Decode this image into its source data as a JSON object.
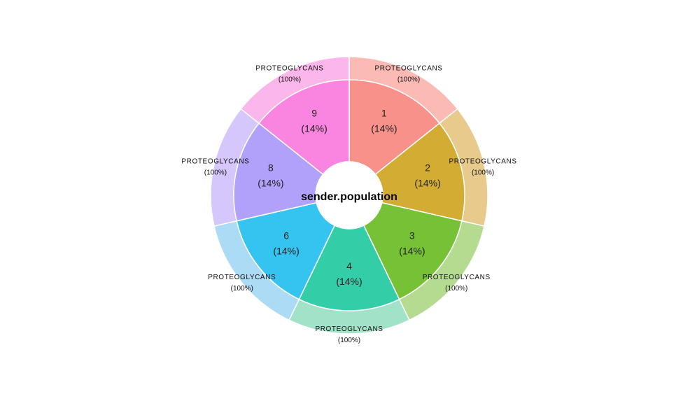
{
  "chart_data": {
    "type": "pie",
    "title": "sender.population",
    "inner_ring": {
      "categories": [
        "1",
        "2",
        "3",
        "4",
        "6",
        "8",
        "9"
      ],
      "values": [
        14,
        14,
        14,
        14,
        14,
        14,
        14
      ],
      "labels": [
        "(14%)",
        "(14%)",
        "(14%)",
        "(14%)",
        "(14%)",
        "(14%)",
        "(14%)"
      ],
      "colors": [
        "#F8918A",
        "#D3AC33",
        "#76C135",
        "#33CDA8",
        "#35C4EF",
        "#B1A1FA",
        "#FA85E1"
      ]
    },
    "outer_ring": {
      "categories": [
        "PROTEOGLYCANS",
        "PROTEOGLYCANS",
        "PROTEOGLYCANS",
        "PROTEOGLYCANS",
        "PROTEOGLYCANS",
        "PROTEOGLYCANS",
        "PROTEOGLYCANS"
      ],
      "values": [
        100,
        100,
        100,
        100,
        100,
        100,
        100
      ],
      "labels": [
        "(100%)",
        "(100%)",
        "(100%)",
        "(100%)",
        "(100%)",
        "(100%)",
        "(100%)"
      ],
      "colors": [
        "#FBBAB4",
        "#E8CA8C",
        "#B4DB8F",
        "#A2E2C8",
        "#ABDBF5",
        "#D5C6FC",
        "#FBB6EC"
      ]
    }
  }
}
